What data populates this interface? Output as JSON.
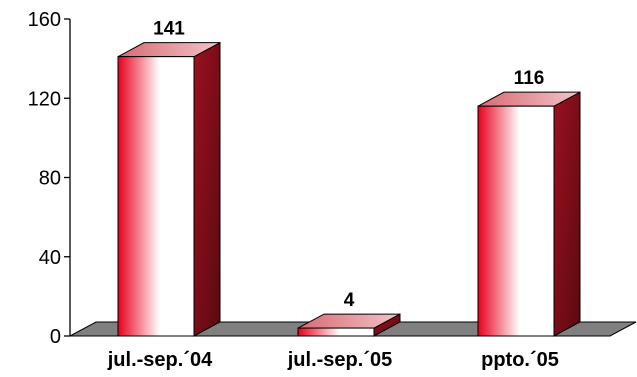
{
  "chart_data": {
    "type": "bar",
    "categories": [
      "jul.-sep.´04",
      "jul.-sep.´05",
      "ppto.´05"
    ],
    "values": [
      141,
      4,
      116
    ],
    "data_labels": [
      "141",
      "4",
      "116"
    ],
    "ylim": [
      0,
      160
    ],
    "yticks": [
      "0",
      "40",
      "80",
      "120",
      "160"
    ],
    "grid": false,
    "legend": "none",
    "style": "3d-column",
    "colors": {
      "bar_gradient_dark": "#e8001c",
      "bar_gradient_light": "#ffffff",
      "bar_side": "#7a0a14",
      "bar_top": "#e79aa0",
      "floor": "#808080",
      "axis": "#000000"
    }
  }
}
